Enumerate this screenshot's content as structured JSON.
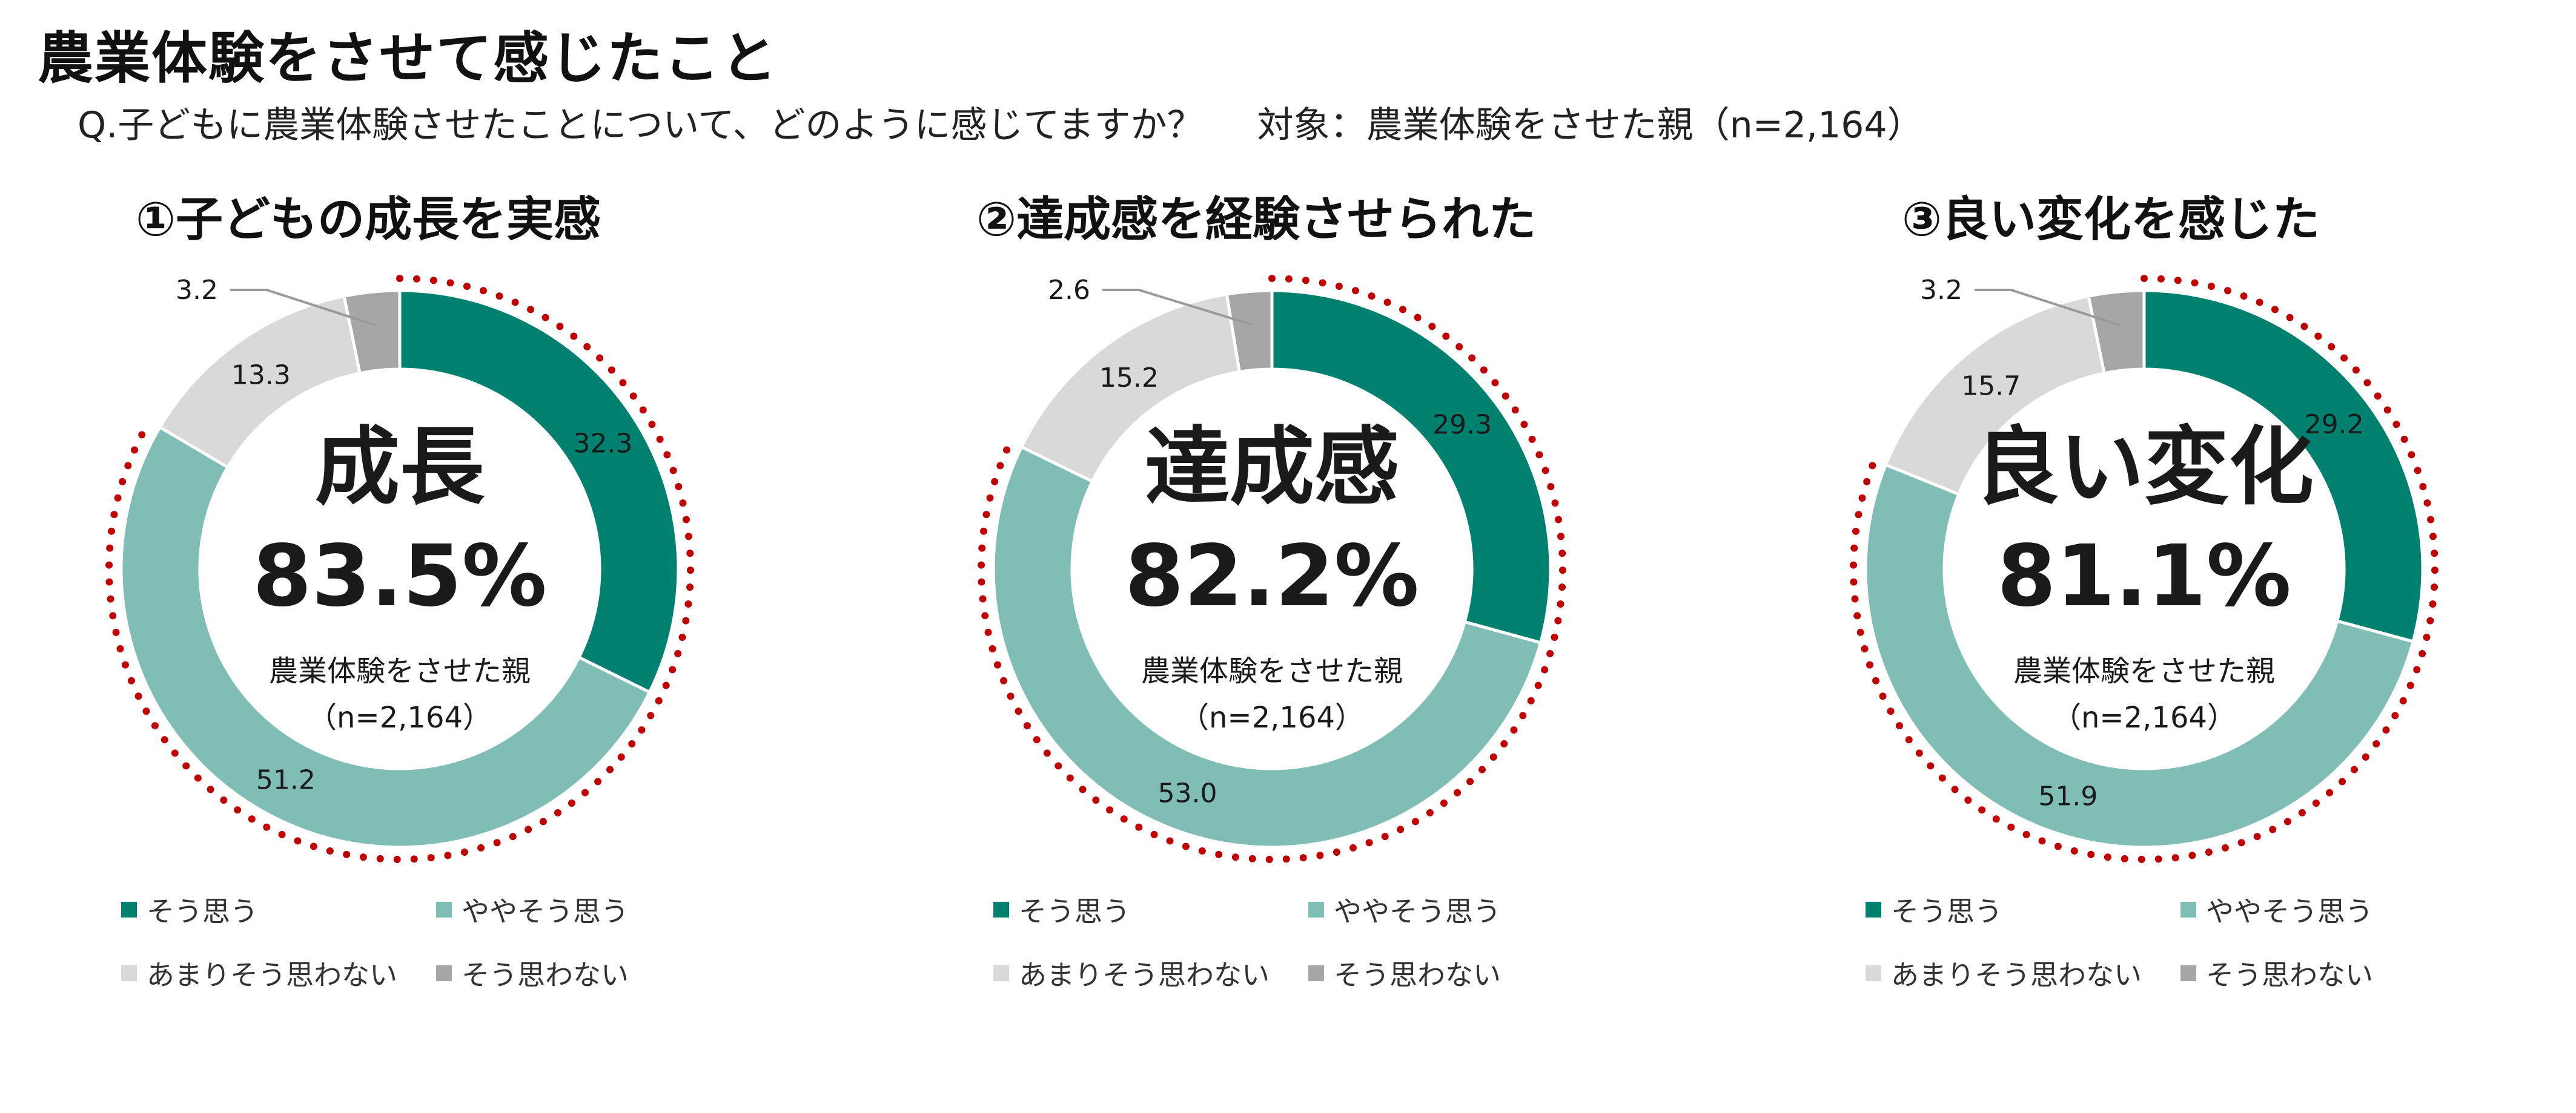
{
  "page": {
    "title": "農業体験をさせて感じたこと",
    "question": "Q.子どもに農業体験させたことについて、どのように感じてますか？",
    "target": "対象：農業体験をさせた親（n=2,164）"
  },
  "colors": {
    "strongly_agree": "#00806E",
    "somewhat_agree": "#80BDB4",
    "somewhat_disagree": "#D9D9D9",
    "disagree": "#A6A6A6",
    "dotted_outline": "#C00000"
  },
  "legend": [
    "そう思う",
    "ややそう思う",
    "あまりそう思わない",
    "そう思わない"
  ],
  "chart_data": [
    {
      "type": "pie",
      "title": "①子どもの成長を実感",
      "center_label": "成長",
      "center_value": "83.5%",
      "center_sub": "農業体験をさせた親",
      "center_n": "（n=2,164）",
      "categories": [
        "そう思う",
        "ややそう思う",
        "あまりそう思わない",
        "そう思わない"
      ],
      "values": [
        32.3,
        51.2,
        13.3,
        3.2
      ],
      "value_labels": [
        "32.3",
        "51.2",
        "13.3",
        "3.2"
      ]
    },
    {
      "type": "pie",
      "title": "②達成感を経験させられた",
      "center_label": "達成感",
      "center_value": "82.2%",
      "center_sub": "農業体験をさせた親",
      "center_n": "（n=2,164）",
      "categories": [
        "そう思う",
        "ややそう思う",
        "あまりそう思わない",
        "そう思わない"
      ],
      "values": [
        29.3,
        53.0,
        15.2,
        2.6
      ],
      "value_labels": [
        "29.3",
        "53.0",
        "15.2",
        "2.6"
      ]
    },
    {
      "type": "pie",
      "title": "③良い変化を感じた",
      "center_label": "良い変化",
      "center_value": "81.1%",
      "center_sub": "農業体験をさせた親",
      "center_n": "（n=2,164）",
      "categories": [
        "そう思う",
        "ややそう思う",
        "あまりそう思わない",
        "そう思わない"
      ],
      "values": [
        29.2,
        51.9,
        15.7,
        3.2
      ],
      "value_labels": [
        "29.2",
        "51.9",
        "15.7",
        "3.2"
      ]
    }
  ]
}
